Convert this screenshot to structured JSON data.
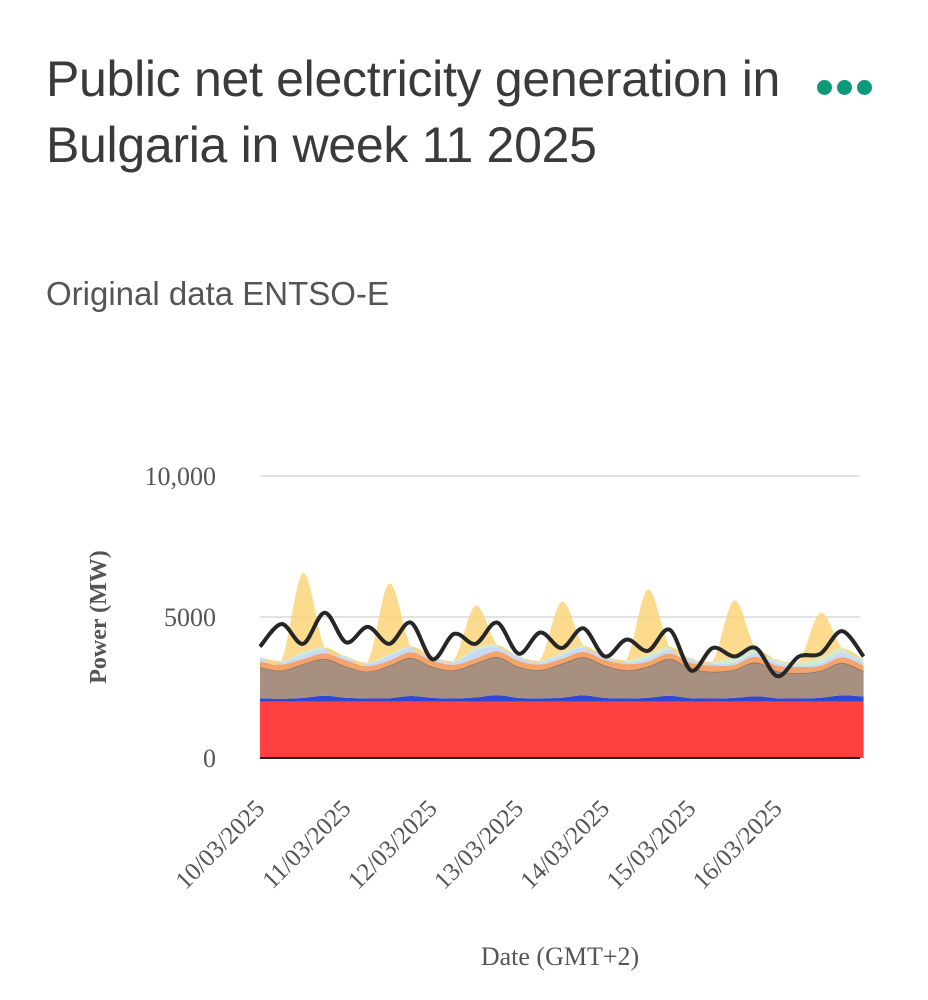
{
  "header": {
    "title": "Public net electricity generation in Bulgaria in week 11 2025",
    "subtitle": "Original data ENTSO-E",
    "menu_icon": "more-horizontal-icon"
  },
  "colors": {
    "nuclear": "#ff4040",
    "hydro_run_of_river": "#3048d0",
    "fossil": "#a89080",
    "fossil_dark": "#8a7264",
    "biomass": "#f4a46a",
    "hydro": "#c8d8f8",
    "wind": "#d3ead0",
    "solar": "#fbd47a",
    "load": "#262626",
    "accent": "#0e9a78"
  },
  "chart_data": {
    "type": "area",
    "title": "Public net electricity generation in Bulgaria in week 11 2025",
    "subtitle": "Original data ENTSO-E",
    "xlabel": "Date (GMT+2)",
    "ylabel": "Power (MW)",
    "ylim": [
      0,
      10000
    ],
    "yticks": [
      0,
      5000,
      10000
    ],
    "ytick_labels": [
      "0",
      "5000",
      "10,000"
    ],
    "xlim": [
      "10/03/2025",
      "16/03/2025 23:00"
    ],
    "x_tick_labels": [
      "10/03/2025",
      "11/03/2025",
      "12/03/2025",
      "13/03/2025",
      "14/03/2025",
      "15/03/2025",
      "16/03/2025"
    ],
    "grid": true,
    "stacked": true,
    "x_step_hours": 6,
    "series": [
      {
        "values": [
          2000,
          2000,
          2000,
          2000,
          2000,
          2000,
          2000,
          2000,
          2000,
          2000,
          2000,
          2000,
          2000,
          2000,
          2000,
          2000,
          2000,
          2000,
          2000,
          2000,
          2000,
          2000,
          2000,
          2000,
          2000,
          2000,
          2000,
          2000,
          2000
        ]
      },
      {
        "values": [
          120,
          100,
          130,
          210,
          140,
          110,
          120,
          200,
          130,
          110,
          150,
          230,
          130,
          120,
          140,
          220,
          130,
          110,
          140,
          210,
          120,
          110,
          130,
          190,
          120,
          110,
          140,
          220,
          180
        ]
      },
      {
        "values": [
          1100,
          1000,
          1200,
          1300,
          1100,
          950,
          1150,
          1350,
          1100,
          1000,
          1200,
          1350,
          1100,
          1000,
          1200,
          1350,
          1150,
          1000,
          1100,
          1300,
          1050,
          950,
          1000,
          1200,
          950,
          900,
          950,
          1150,
          900
        ]
      },
      {
        "values": [
          200,
          220,
          180,
          200,
          220,
          200,
          180,
          200,
          220,
          200,
          180,
          200,
          220,
          200,
          180,
          200,
          200,
          220,
          180,
          200,
          200,
          220,
          180,
          200,
          200,
          220,
          180,
          200,
          200
        ]
      },
      {
        "values": [
          120,
          80,
          150,
          150,
          100,
          80,
          160,
          150,
          120,
          90,
          250,
          150,
          120,
          90,
          120,
          150,
          100,
          80,
          100,
          130,
          90,
          70,
          80,
          120,
          80,
          60,
          80,
          170,
          120
        ]
      },
      {
        "values": [
          30,
          40,
          100,
          60,
          30,
          40,
          80,
          60,
          40,
          50,
          120,
          80,
          30,
          40,
          100,
          60,
          40,
          50,
          150,
          100,
          60,
          60,
          200,
          150,
          120,
          100,
          200,
          150,
          100
        ]
      },
      {
        "values": [
          30,
          40,
          2800,
          0,
          30,
          40,
          2500,
          0,
          30,
          40,
          1500,
          0,
          30,
          40,
          1800,
          0,
          30,
          40,
          2300,
          0,
          30,
          40,
          2000,
          0,
          30,
          40,
          1600,
          0,
          0
        ]
      },
      {
        "values": [
          3950,
          4750,
          4050,
          5150,
          4100,
          4650,
          4050,
          4800,
          3500,
          4400,
          4050,
          4800,
          3700,
          4450,
          3900,
          4600,
          3600,
          4200,
          3800,
          4550,
          3100,
          3900,
          3600,
          3900,
          2900,
          3600,
          3700,
          4500,
          3600
        ]
      }
    ]
  }
}
